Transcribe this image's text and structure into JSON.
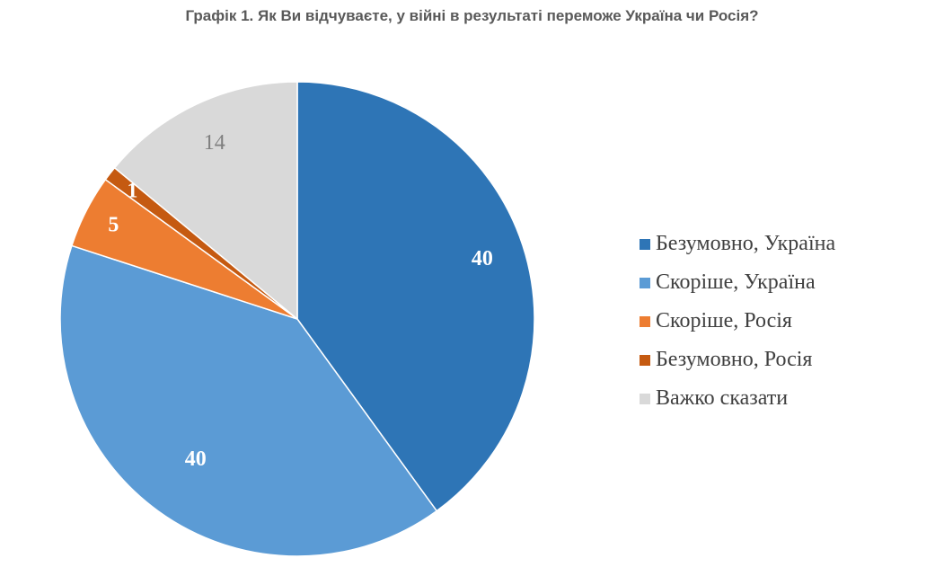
{
  "chart_data": {
    "type": "pie",
    "title": "Графік 1. Як Ви відчуваєте, у війні в результаті переможе Україна чи Росія?",
    "slices": [
      {
        "label": "Безумовно, Україна",
        "value": 40,
        "display": "40",
        "color": "#2E75B6",
        "label_color": "#FFFFFF",
        "label_bold": true
      },
      {
        "label": "Скоріше, Україна",
        "value": 40,
        "display": "40",
        "color": "#5B9BD5",
        "label_color": "#FFFFFF",
        "label_bold": true
      },
      {
        "label": "Скоріше, Росія",
        "value": 5,
        "display": "5",
        "color": "#ED7D31",
        "label_color": "#FFFFFF",
        "label_bold": true
      },
      {
        "label": "Безумовно, Росія",
        "value": 1,
        "display": "1",
        "color": "#C55A11",
        "label_color": "#FFFFFF",
        "label_bold": true
      },
      {
        "label": "Важко сказати",
        "value": 14,
        "display": "14",
        "color": "#D9D9D9",
        "label_color": "#7F7F7F",
        "label_bold": false
      }
    ],
    "legend_position": "right"
  }
}
